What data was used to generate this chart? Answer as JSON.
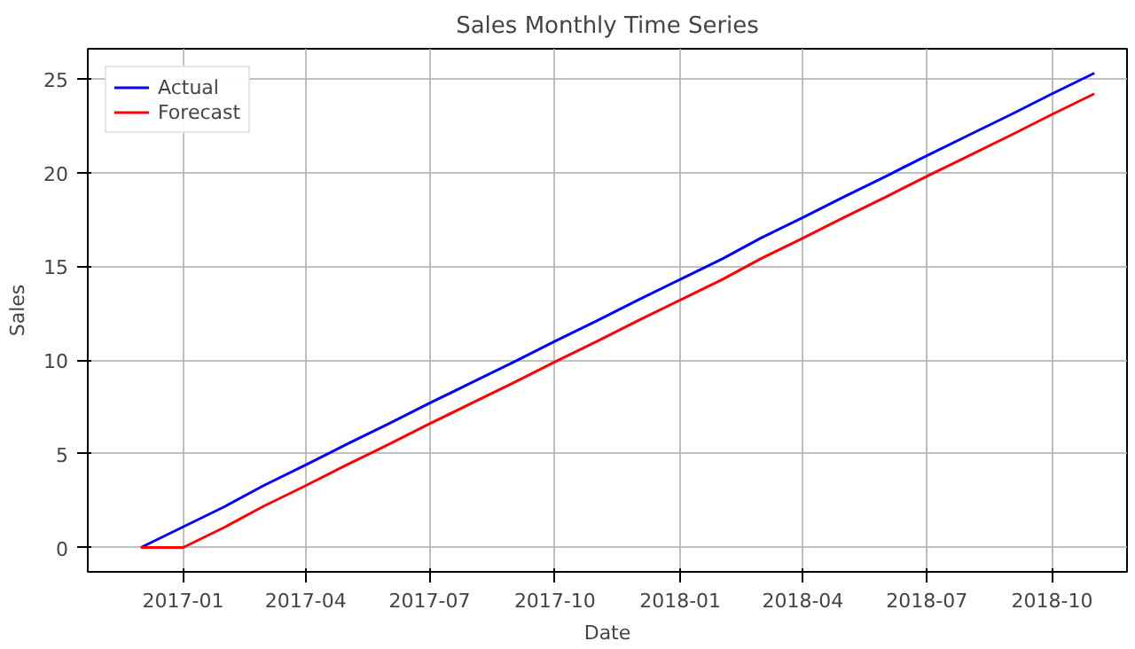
{
  "chart_data": {
    "type": "line",
    "title": "Sales Monthly Time Series",
    "xlabel": "Date",
    "ylabel": "Sales",
    "x": [
      "2016-12",
      "2017-01",
      "2017-02",
      "2017-03",
      "2017-04",
      "2017-05",
      "2017-06",
      "2017-07",
      "2017-08",
      "2017-09",
      "2017-10",
      "2017-11",
      "2017-12",
      "2018-01",
      "2018-02",
      "2018-03",
      "2018-04",
      "2018-05",
      "2018-06",
      "2018-07",
      "2018-08",
      "2018-09",
      "2018-10",
      "2018-11"
    ],
    "series": [
      {
        "name": "Actual",
        "color": "#0000ff",
        "values": [
          0,
          1.1,
          2.2,
          3.3,
          4.4,
          5.5,
          6.6,
          7.7,
          8.8,
          9.9,
          11,
          12.1,
          13.2,
          14.3,
          15.4,
          16.5,
          17.6,
          18.7,
          19.8,
          20.9,
          22,
          23.1,
          24.2,
          25.3
        ]
      },
      {
        "name": "Forecast",
        "color": "#ff0000",
        "values": [
          0,
          0,
          1.1,
          2.2,
          3.3,
          4.4,
          5.5,
          6.6,
          7.7,
          8.8,
          9.9,
          11,
          12.1,
          13.2,
          14.3,
          15.4,
          16.5,
          17.6,
          18.7,
          19.8,
          20.9,
          22,
          23.1,
          24.2
        ]
      }
    ],
    "xlim": [
      "2016-10-23",
      "2018-11-25"
    ],
    "xticks": [
      "2017-01",
      "2017-04",
      "2017-07",
      "2017-10",
      "2018-01",
      "2018-04",
      "2018-07",
      "2018-10"
    ],
    "ylim": [
      -1.3,
      26.6
    ],
    "yticks": [
      0,
      5,
      10,
      15,
      20,
      25
    ],
    "grid": true,
    "legend": "top left"
  }
}
